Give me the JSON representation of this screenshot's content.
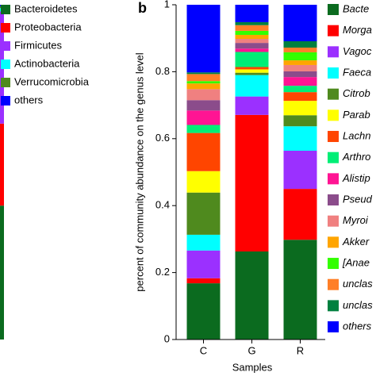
{
  "chart_data": [
    {
      "type": "bar",
      "stacked": true,
      "categories": [
        null
      ],
      "ylim": [
        0,
        1
      ],
      "series": [
        {
          "name": "Bacteroidetes",
          "color": "#0b6b1f",
          "values": [
            0.4
          ]
        },
        {
          "name": "Proteobacteria",
          "color": "#ff0000",
          "values": [
            0.245
          ]
        },
        {
          "name": "Firmicutes",
          "color": "#9b30ff",
          "values": [
            0.335
          ]
        },
        {
          "name": "Actinobacteria",
          "color": "#00ffff",
          "values": [
            0.01
          ]
        },
        {
          "name": "Verrucomicrobia",
          "color": "#4f8a1e",
          "values": [
            0.005
          ]
        },
        {
          "name": "others",
          "color": "#0000ff",
          "values": [
            0.005
          ]
        }
      ]
    },
    {
      "type": "bar",
      "stacked": true,
      "panel_label": "b",
      "y_label": "percent of community abundance on the genus level",
      "x_label": "Samples",
      "categories": [
        "C",
        "G",
        "R"
      ],
      "ylim": [
        0,
        1
      ],
      "yticks": [
        0,
        0.2,
        0.4,
        0.6,
        0.8,
        1
      ],
      "series": [
        {
          "name": "Bacte",
          "color": "#0b6b1f",
          "values": [
            0.168,
            0.263,
            0.298
          ]
        },
        {
          "name": "Morga",
          "color": "#ff0000",
          "values": [
            0.015,
            0.408,
            0.152
          ]
        },
        {
          "name": "Vagoc",
          "color": "#9b30ff",
          "values": [
            0.083,
            0.055,
            0.114
          ]
        },
        {
          "name": "Faeca",
          "color": "#00ffff",
          "values": [
            0.047,
            0.064,
            0.073
          ]
        },
        {
          "name": "Citrob",
          "color": "#4f8a1e",
          "values": [
            0.126,
            0.007,
            0.033
          ]
        },
        {
          "name": "Parab",
          "color": "#ffff00",
          "values": [
            0.064,
            0.01,
            0.043
          ]
        },
        {
          "name": "Lachn",
          "color": "#ff4500",
          "values": [
            0.114,
            0.007,
            0.026
          ]
        },
        {
          "name": "Arthro",
          "color": "#00ee76",
          "values": [
            0.024,
            0.045,
            0.019
          ]
        },
        {
          "name": "Alistip",
          "color": "#ff1493",
          "values": [
            0.043,
            0.01,
            0.026
          ]
        },
        {
          "name": "Pseud",
          "color": "#8b4c8b",
          "values": [
            0.031,
            0.017,
            0.017
          ]
        },
        {
          "name": "Myroi",
          "color": "#f08080",
          "values": [
            0.033,
            0.012,
            0.019
          ]
        },
        {
          "name": "Akker",
          "color": "#ffa500",
          "values": [
            0.017,
            0.012,
            0.014
          ]
        },
        {
          "name": "[Anae",
          "color": "#33ff00",
          "values": [
            0.007,
            0.012,
            0.024
          ]
        },
        {
          "name": "unclas",
          "color": "#ff7f27",
          "values": [
            0.021,
            0.017,
            0.014
          ]
        },
        {
          "name": "unclas",
          "color": "#00803f",
          "values": [
            0.005,
            0.009,
            0.019
          ]
        },
        {
          "name": "others",
          "color": "#0000ff",
          "values": [
            0.202,
            0.052,
            0.109
          ]
        }
      ]
    }
  ]
}
